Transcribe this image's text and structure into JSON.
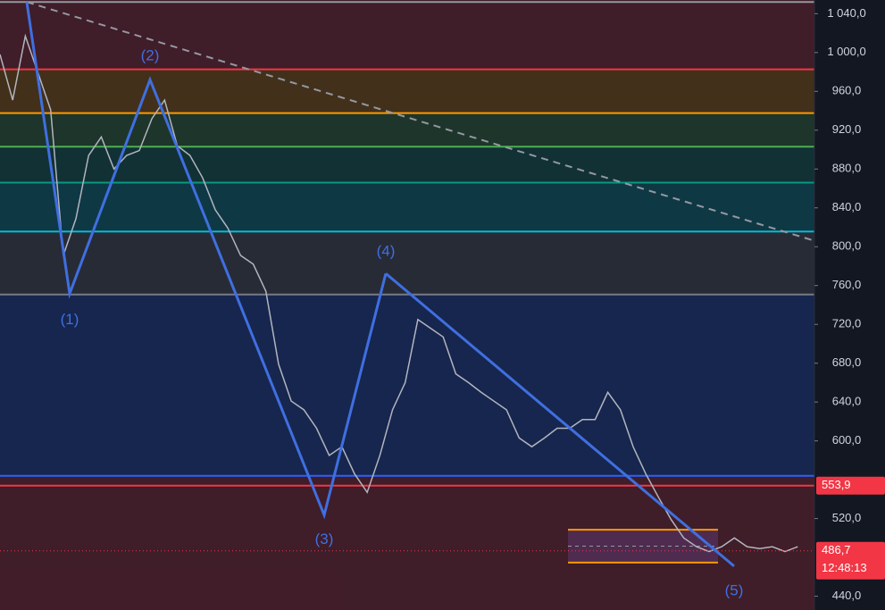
{
  "chart_data": {
    "type": "line",
    "series": [
      {
        "color": "#b2b5be",
        "values": [
          998,
          951,
          1017,
          979,
          941,
          791,
          829,
          894,
          913,
          880,
          894,
          899,
          932,
          951,
          904,
          894,
          871,
          838,
          819,
          791,
          782,
          754,
          679,
          641,
          632,
          613,
          585,
          594,
          566,
          547,
          585,
          632,
          660,
          725,
          716,
          707,
          669,
          660,
          650,
          641,
          632,
          603,
          594,
          603,
          613,
          613,
          622,
          622,
          650,
          632,
          594,
          566,
          542,
          519,
          500,
          491,
          486,
          491,
          500,
          491,
          489,
          491,
          486,
          491
        ]
      }
    ],
    "xlim": [
      0,
      76
    ],
    "ylim": [
      425.8,
      1054.1
    ],
    "yticks": [
      {
        "value": 1040,
        "label": "1 040,0"
      },
      {
        "value": 1000,
        "label": "1 000,0"
      },
      {
        "value": 960,
        "label": "960,0"
      },
      {
        "value": 920,
        "label": "920,0"
      },
      {
        "value": 880,
        "label": "880,0"
      },
      {
        "value": 840,
        "label": "840,0"
      },
      {
        "value": 800,
        "label": "800,0"
      },
      {
        "value": 760,
        "label": "760,0"
      },
      {
        "value": 720,
        "label": "720,0"
      },
      {
        "value": 680,
        "label": "680,0"
      },
      {
        "value": 640,
        "label": "640,0"
      },
      {
        "value": 600,
        "label": "600,0"
      },
      {
        "value": 520,
        "label": "520,0"
      },
      {
        "value": 440,
        "label": "440,0"
      }
    ],
    "levels": [
      {
        "value": 1052,
        "color": "#9598a1"
      },
      {
        "value": 982.7,
        "color": "#f23645"
      },
      {
        "value": 937.6,
        "color": "#ff9800"
      },
      {
        "value": 903,
        "color": "#4caf50"
      },
      {
        "value": 866,
        "color": "#089981"
      },
      {
        "value": 815.6,
        "color": "#00bcd4"
      },
      {
        "value": 750.8,
        "color": "#787b86"
      },
      {
        "value": 564,
        "color": "#2962ff"
      },
      {
        "value": 553.9,
        "color": "#f23645"
      }
    ],
    "price_tags": [
      {
        "value": 553.9,
        "label": "553,9"
      },
      {
        "value": 486.7,
        "label": "486,7",
        "time": "12:48:13"
      }
    ],
    "wave": {
      "color": "#3f6fe0",
      "points": [
        {
          "x": 2.5,
          "y": 1052
        },
        {
          "x": 6.5,
          "y": 751.7,
          "label": "(1)"
        },
        {
          "x": 14,
          "y": 972,
          "label": "(2)"
        },
        {
          "x": 30.25,
          "y": 523.6,
          "label": "(3)"
        },
        {
          "x": 36,
          "y": 772.4,
          "label": "(4)"
        },
        {
          "x": 68.5,
          "y": 471,
          "label": "(5)"
        }
      ]
    },
    "trendline": {
      "x": [
        2.5,
        82.6
      ],
      "y": [
        1052,
        784
      ]
    },
    "range_box": {
      "x": [
        53,
        67
      ],
      "top": 508.5,
      "bottom": 474.7,
      "mid": 491.6
    }
  }
}
